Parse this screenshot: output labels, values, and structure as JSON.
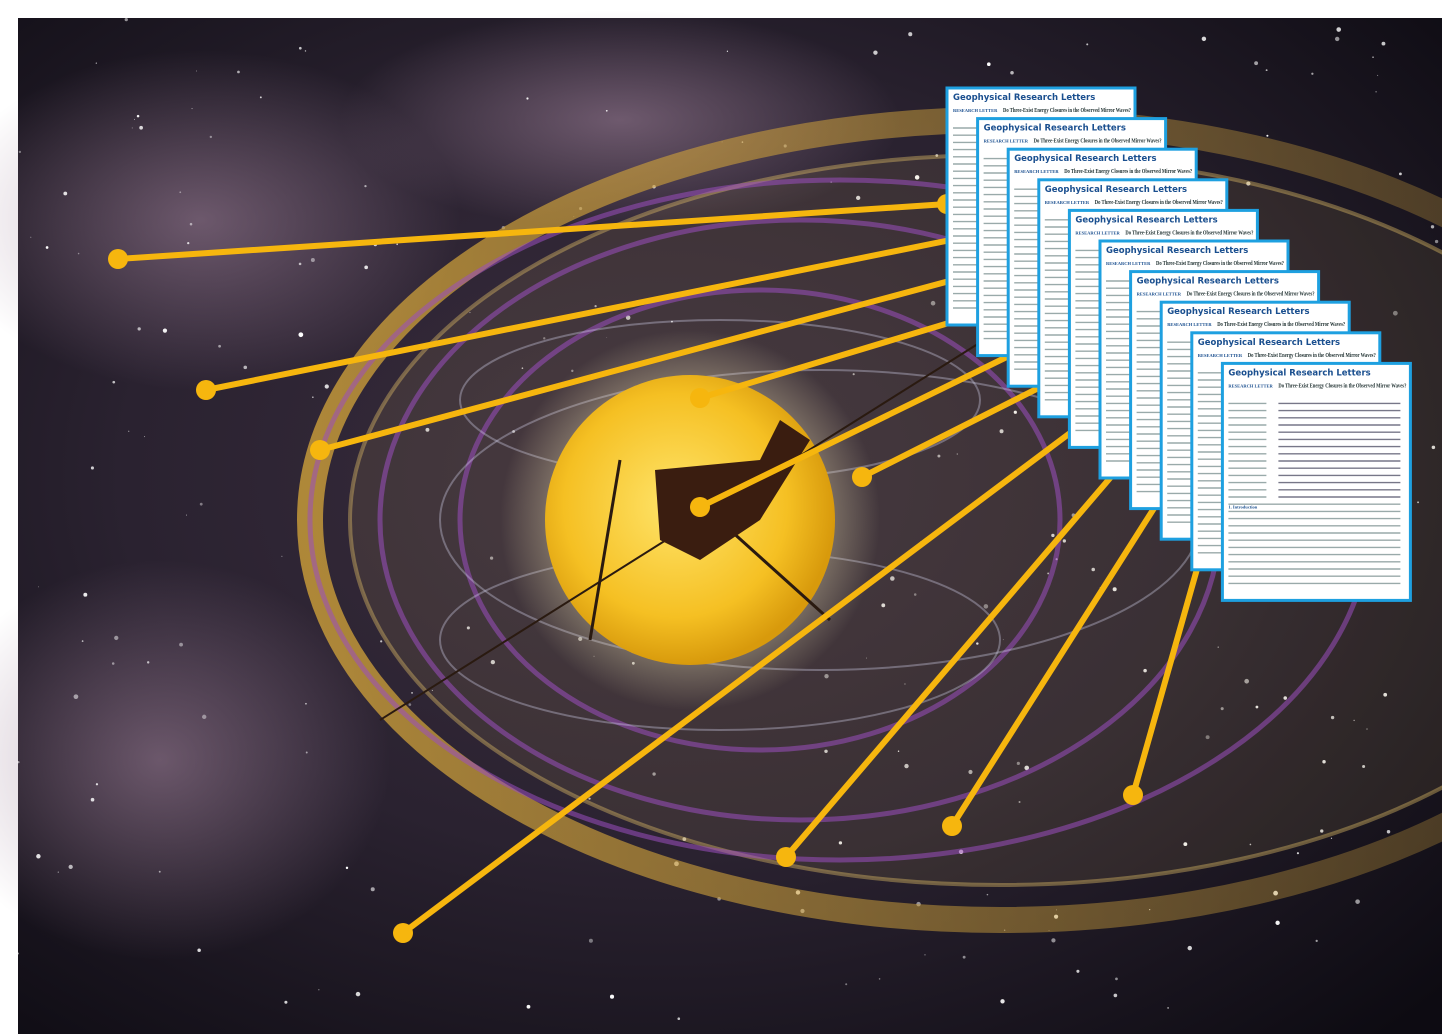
{
  "paper": {
    "journal": "Geophysical Research Letters",
    "article_type": "RESEARCH LETTER",
    "title": "Do Three-Exist Energy Closures in the Observed Mirror Waves?",
    "section": "1. Introduction"
  }
}
